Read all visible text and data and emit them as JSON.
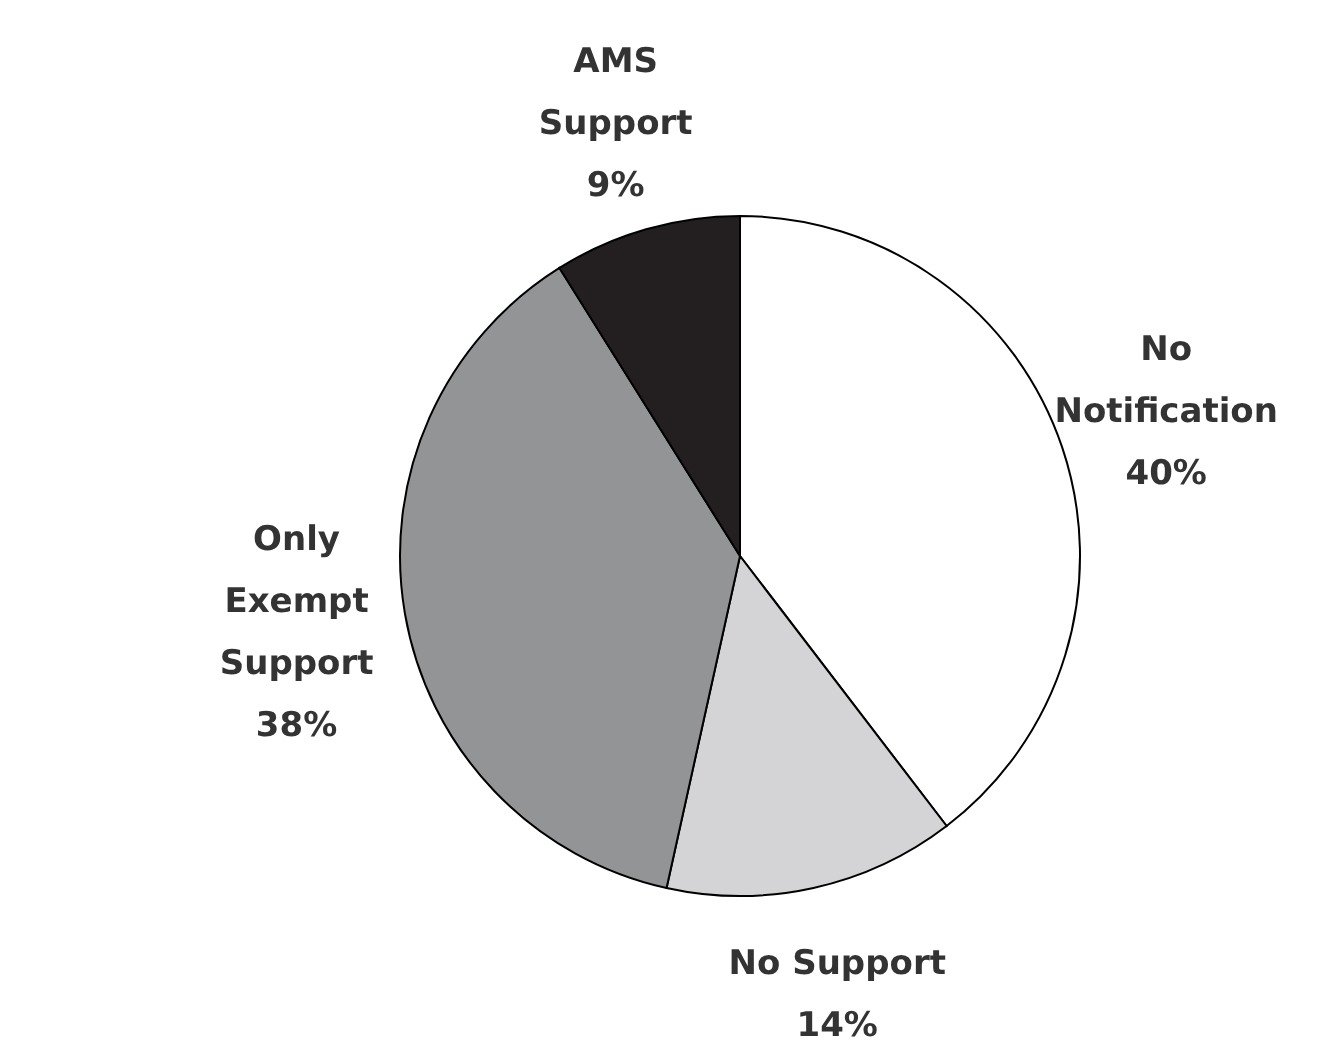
{
  "chart_data": {
    "type": "pie",
    "categories": [
      "No Notification",
      "No Support",
      "Only Exempt Support",
      "AMS Support"
    ],
    "values": [
      40,
      14,
      38,
      9
    ],
    "value_labels": [
      "40%",
      "14%",
      "38%",
      "9%"
    ],
    "colors": [
      "#ffffff",
      "#d4d4d6",
      "#939496",
      "#231f20"
    ],
    "legend": false
  }
}
